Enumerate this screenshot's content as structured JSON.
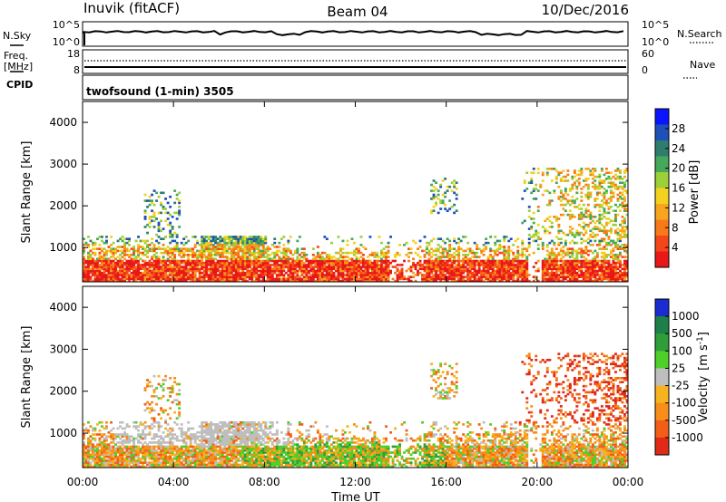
{
  "header": {
    "station": "Inuvik (fitACF)",
    "beam": "Beam 04",
    "date": "10/Dec/2016"
  },
  "top_panels": {
    "nsky_label": "N.Sky",
    "nsky_ticks": [
      "10^5",
      "10^0"
    ],
    "nsearch_label": "N.Search",
    "nsearch_ticks": [
      "10^5",
      "10^0"
    ],
    "freq_label": "Freq.",
    "freq_unit": "[MHz]",
    "freq_ticks": [
      "18",
      "8"
    ],
    "nave_label": "Nave",
    "nave_ticks": [
      "60",
      "0"
    ],
    "cpid_label": "CPID",
    "cpid_value": "twofsound (1-min) 3505"
  },
  "chart_data": [
    {
      "type": "heatmap",
      "name": "power-panel",
      "ylabel": "Slant Range [km]",
      "yticks": [
        "4000",
        "3000",
        "2000",
        "1000"
      ],
      "ylim": [
        180,
        4500
      ],
      "xlim": [
        0,
        24
      ],
      "colorbar": {
        "label": "Power [dB]",
        "ticks": [
          "28",
          "24",
          "20",
          "16",
          "12",
          "8",
          "4"
        ],
        "colors": [
          "#0a14ff",
          "#1f4fb8",
          "#2f7d6e",
          "#45a85a",
          "#9ccf3a",
          "#f2d21f",
          "#f7a51f",
          "#f77a1a",
          "#f5461a",
          "#e81818"
        ]
      }
    },
    {
      "type": "heatmap",
      "name": "velocity-panel",
      "ylabel": "Slant Range [km]",
      "yticks": [
        "4000",
        "3000",
        "2000",
        "1000"
      ],
      "ylim": [
        180,
        4500
      ],
      "xlim": [
        0,
        24
      ],
      "xlabel": "Time UT",
      "xticks": [
        "00:00",
        "04:00",
        "08:00",
        "12:00",
        "16:00",
        "20:00",
        "00:00"
      ],
      "colorbar": {
        "label": "Velocity",
        "unit": "[m s",
        "unit_exp": "-1",
        "unit_end": "]",
        "ticks": [
          "1000",
          "500",
          "100",
          "25",
          "-25",
          "-100",
          "-500",
          "-1000"
        ],
        "colors": [
          "#1a2cd0",
          "#1f7f48",
          "#2f9e3a",
          "#4fcf2a",
          "#bebebe",
          "#f7b21f",
          "#f78e1a",
          "#f25e18",
          "#e02a18"
        ]
      }
    }
  ]
}
